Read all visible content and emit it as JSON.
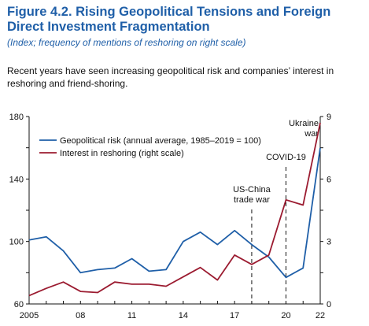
{
  "figure": {
    "title": "Figure 4.2. Rising Geopolitical Tensions and Foreign Direct Investment Fragmentation",
    "subtitle": "(Index; frequency of mentions of reshoring on right scale)",
    "caption": "Recent years have seen increasing geopolitical risk and companies’ interest in reshoring and friend-shoring."
  },
  "chart_data": {
    "type": "line",
    "title": "",
    "xlabel": "",
    "ylabel": "",
    "x": [
      2005,
      2006,
      2007,
      2008,
      2009,
      2010,
      2011,
      2012,
      2013,
      2014,
      2015,
      2016,
      2017,
      2018,
      2019,
      2020,
      2021,
      2022
    ],
    "x_tick_values": [
      2005,
      2008,
      2011,
      2014,
      2017,
      2020,
      2022
    ],
    "x_tick_labels": [
      "2005",
      "08",
      "11",
      "14",
      "17",
      "20",
      "22"
    ],
    "xlim": [
      2005,
      2022
    ],
    "ylim_left": [
      60,
      180
    ],
    "y_left_ticks": [
      60,
      80,
      100,
      120,
      140,
      160,
      180
    ],
    "y_left_tick_labels": [
      "60",
      "",
      "100",
      "",
      "140",
      "",
      "180"
    ],
    "ylim_right": [
      0,
      9
    ],
    "y_right_ticks": [
      0,
      1.5,
      3,
      4.5,
      6,
      7.5,
      9
    ],
    "y_right_tick_labels": [
      "0",
      "",
      "3",
      "",
      "6",
      "",
      "9"
    ],
    "grid": false,
    "legend_position": "top-left",
    "series": [
      {
        "name": "Geopolitical risk (annual average, 1985–2019 = 100)",
        "axis": "left",
        "color": "#1f5fa8",
        "values": [
          101,
          103,
          94,
          80,
          82,
          83,
          89,
          81,
          82,
          100,
          106,
          98,
          107,
          98,
          90,
          77,
          83,
          160
        ]
      },
      {
        "name": "Interest in reshoring (right scale)",
        "axis": "right",
        "color": "#9b1b30",
        "values": [
          0.4,
          0.75,
          1.05,
          0.6,
          0.55,
          1.05,
          0.95,
          0.95,
          0.85,
          1.3,
          1.75,
          1.15,
          2.35,
          1.9,
          2.35,
          5.0,
          4.75,
          8.7
        ]
      }
    ],
    "annotations": [
      {
        "x": 2018,
        "lines": [
          "US-China",
          "trade war"
        ]
      },
      {
        "x": 2020,
        "lines": [
          "COVID-19"
        ]
      },
      {
        "x": 2022,
        "lines": [
          "Ukraine",
          "war"
        ]
      }
    ]
  }
}
